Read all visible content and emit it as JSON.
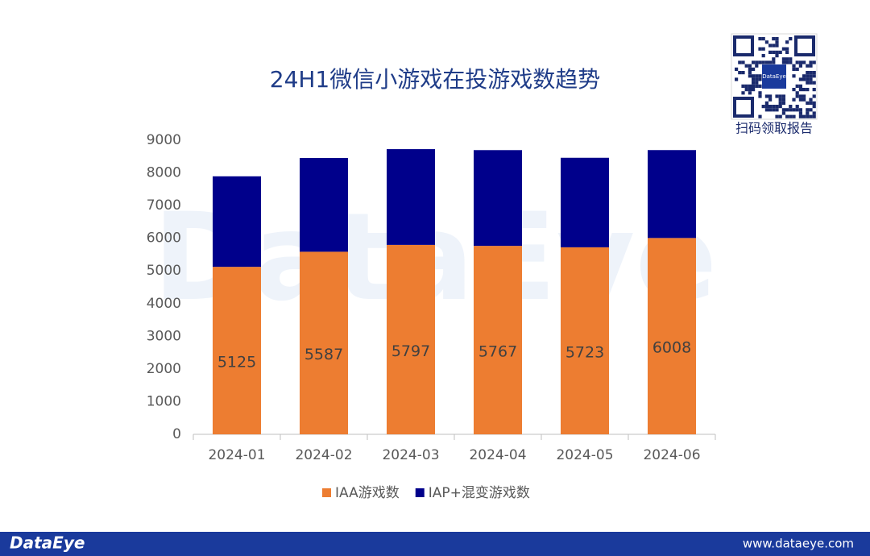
{
  "chart_data": {
    "type": "stacked_bar",
    "title": "24H1微信小游戏在投游戏数趋势",
    "categories": [
      "2024-01",
      "2024-02",
      "2024-03",
      "2024-04",
      "2024-05",
      "2024-06"
    ],
    "series": [
      {
        "name": "IAA游戏数",
        "color": "#ED7D31",
        "values": [
          5125,
          5587,
          5797,
          5767,
          5723,
          6008
        ],
        "data_labels": true
      },
      {
        "name": "IAP+混变游戏数",
        "color": "#00008B",
        "values": [
          2770,
          2870,
          2930,
          2930,
          2740,
          2690
        ],
        "data_labels": false
      }
    ],
    "ylim": [
      0,
      9000
    ],
    "yticks": [
      0,
      1000,
      2000,
      3000,
      4000,
      5000,
      6000,
      7000,
      8000,
      9000
    ],
    "grid": false,
    "legend": "bottom"
  },
  "watermark": "DataEye",
  "qr": {
    "logo": "DataEye",
    "caption": "扫码领取报告"
  },
  "footer": {
    "brand": "DataEye",
    "url": "www.dataeye.com"
  }
}
